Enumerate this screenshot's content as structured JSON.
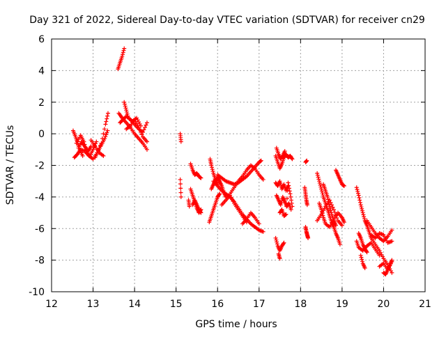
{
  "chart_data": {
    "type": "scatter",
    "title": "Day 321 of 2022, Sidereal Day-to-day VTEC variation (SDTVAR) for receiver cn29",
    "xlabel": "GPS time / hours",
    "ylabel": "SDTVAR / TECUs",
    "xlim": [
      12,
      21
    ],
    "ylim": [
      -10,
      6
    ],
    "xticks": [
      12,
      13,
      14,
      15,
      16,
      17,
      18,
      19,
      20,
      21
    ],
    "yticks": [
      -10,
      -8,
      -6,
      -4,
      -2,
      0,
      2,
      4,
      6
    ],
    "grid": true,
    "marker": "+",
    "series": [
      {
        "name": "SDTVAR",
        "color": "#ff0000",
        "segments": [
          {
            "x": [
              12.52,
              12.58,
              12.63,
              12.68,
              12.75
            ],
            "y": [
              0.2,
              -0.2,
              -0.6,
              -1.0,
              -1.4
            ]
          },
          {
            "x": [
              12.55,
              12.62,
              12.7,
              12.8,
              12.9,
              13.0,
              13.1,
              13.2,
              13.3,
              13.36
            ],
            "y": [
              -1.5,
              -1.3,
              -1.0,
              -1.1,
              -1.4,
              -1.6,
              -1.2,
              -0.6,
              0.6,
              1.3
            ]
          },
          {
            "x": [
              12.6,
              12.7,
              12.78,
              12.85,
              12.92,
              13.0,
              13.08
            ],
            "y": [
              -0.6,
              -0.1,
              -0.5,
              -1.2,
              -1.4,
              -1.0,
              -0.5
            ]
          },
          {
            "x": [
              12.65,
              12.72,
              12.8,
              12.88,
              12.95
            ],
            "y": [
              -0.9,
              -0.5,
              -0.8,
              -1.1,
              -0.8
            ]
          },
          {
            "x": [
              13.05,
              13.12,
              13.2,
              13.28,
              13.35
            ],
            "y": [
              -1.5,
              -1.1,
              -0.7,
              -0.3,
              0.2
            ]
          },
          {
            "x": [
              12.95,
              13.05,
              13.15,
              13.25
            ],
            "y": [
              -0.4,
              -0.8,
              -1.2,
              -1.4
            ]
          },
          {
            "x": [
              13.6,
              13.65,
              13.7,
              13.75
            ],
            "y": [
              4.1,
              4.5,
              4.9,
              5.4
            ]
          },
          {
            "x": [
              13.62,
              13.7,
              13.8,
              13.9,
              14.0,
              14.1,
              14.2,
              14.3
            ],
            "y": [
              1.3,
              1.0,
              0.7,
              0.4,
              0.0,
              -0.3,
              -0.6,
              -1.0
            ]
          },
          {
            "x": [
              13.65,
              13.72,
              13.8,
              13.9,
              14.0,
              14.1,
              14.2,
              14.3
            ],
            "y": [
              0.7,
              0.9,
              1.1,
              0.9,
              0.6,
              0.3,
              0.1,
              0.7
            ]
          },
          {
            "x": [
              13.75,
              13.8,
              13.85,
              13.95,
              14.05,
              14.15
            ],
            "y": [
              2.0,
              1.5,
              1.0,
              0.8,
              1.0,
              0.5
            ]
          },
          {
            "x": [
              13.8,
              13.9,
              14.0,
              14.1,
              14.2,
              14.3
            ],
            "y": [
              0.3,
              0.5,
              0.9,
              0.4,
              -0.2,
              -0.5
            ]
          },
          {
            "x": [
              15.1,
              15.12
            ],
            "y": [
              0.0,
              -0.5
            ]
          },
          {
            "x": [
              15.1,
              15.12
            ],
            "y": [
              -2.9,
              -4.0
            ]
          },
          {
            "x": [
              15.35,
              15.4,
              15.45,
              15.5,
              15.55,
              15.6
            ],
            "y": [
              -1.9,
              -2.3,
              -2.6,
              -2.5,
              -2.7,
              -2.8
            ]
          },
          {
            "x": [
              15.35,
              15.4,
              15.45,
              15.5,
              15.55,
              15.6
            ],
            "y": [
              -3.5,
              -3.9,
              -4.3,
              -4.7,
              -5.0,
              -4.8
            ]
          },
          {
            "x": [
              15.4,
              15.45,
              15.5,
              15.55,
              15.6
            ],
            "y": [
              -4.5,
              -4.2,
              -4.5,
              -4.8,
              -5.0
            ]
          },
          {
            "x": [
              15.3,
              15.32
            ],
            "y": [
              -4.2,
              -4.6
            ]
          },
          {
            "x": [
              15.82,
              15.85,
              15.9,
              15.95,
              16.0
            ],
            "y": [
              -1.6,
              -2.0,
              -2.5,
              -2.9,
              -3.2
            ]
          },
          {
            "x": [
              15.8,
              15.85,
              15.9,
              15.95,
              16.0,
              16.05
            ],
            "y": [
              -5.6,
              -5.2,
              -4.8,
              -4.4,
              -4.0,
              -3.8
            ]
          },
          {
            "x": [
              15.85,
              15.9,
              15.95,
              16.0,
              16.05,
              16.1,
              16.15,
              16.2
            ],
            "y": [
              -3.5,
              -3.2,
              -2.9,
              -2.8,
              -3.0,
              -3.3,
              -3.7,
              -4.0
            ]
          },
          {
            "x": [
              15.9,
              16.0,
              16.1,
              16.2,
              16.3,
              16.4,
              16.5,
              16.6,
              16.7,
              16.8,
              16.9,
              17.0,
              17.1
            ],
            "y": [
              -3.0,
              -3.3,
              -3.6,
              -3.8,
              -4.0,
              -4.3,
              -4.7,
              -5.1,
              -5.4,
              -5.7,
              -5.9,
              -6.1,
              -6.2
            ]
          },
          {
            "x": [
              16.0,
              16.1,
              16.2,
              16.3,
              16.4,
              16.5,
              16.6,
              16.7,
              16.8,
              16.9,
              17.0,
              17.05
            ],
            "y": [
              -2.6,
              -2.8,
              -3.0,
              -3.1,
              -3.2,
              -3.1,
              -2.9,
              -2.7,
              -2.4,
              -2.1,
              -1.8,
              -1.7
            ]
          },
          {
            "x": [
              16.3,
              16.4,
              16.5,
              16.6,
              16.7,
              16.8,
              16.9,
              17.0,
              17.1
            ],
            "y": [
              -3.8,
              -3.4,
              -3.0,
              -2.7,
              -2.3,
              -2.0,
              -2.2,
              -2.6,
              -2.9
            ]
          },
          {
            "x": [
              16.1,
              16.2,
              16.3,
              16.4,
              16.5,
              16.6,
              16.7
            ],
            "y": [
              -4.5,
              -4.2,
              -3.9,
              -4.4,
              -4.8,
              -5.2,
              -5.6
            ]
          },
          {
            "x": [
              16.6,
              16.7,
              16.8,
              16.9,
              17.0
            ],
            "y": [
              -5.7,
              -5.4,
              -5.0,
              -5.3,
              -5.7
            ]
          },
          {
            "x": [
              17.4,
              17.45,
              17.5,
              17.55,
              17.6,
              17.65
            ],
            "y": [
              -1.4,
              -1.8,
              -2.2,
              -1.9,
              -1.5,
              -1.3
            ]
          },
          {
            "x": [
              17.42,
              17.47,
              17.52,
              17.57,
              17.62
            ],
            "y": [
              -0.9,
              -1.3,
              -1.6,
              -1.4,
              -1.1
            ]
          },
          {
            "x": [
              17.4,
              17.45,
              17.5,
              17.55,
              17.6,
              17.65,
              17.7
            ],
            "y": [
              -3.1,
              -3.3,
              -3.0,
              -3.5,
              -3.2,
              -3.6,
              -3.3
            ]
          },
          {
            "x": [
              17.42,
              17.47,
              17.52,
              17.57,
              17.62,
              17.67,
              17.72,
              17.77
            ],
            "y": [
              -3.9,
              -4.2,
              -4.5,
              -4.0,
              -4.3,
              -4.6,
              -4.4,
              -4.8
            ]
          },
          {
            "x": [
              17.5,
              17.55,
              17.6,
              17.65,
              17.7,
              17.75,
              17.8
            ],
            "y": [
              -5.0,
              -4.8,
              -5.2,
              -5.1,
              -3.1,
              -3.8,
              -4.6
            ]
          },
          {
            "x": [
              17.4,
              17.45,
              17.5,
              17.55,
              17.6
            ],
            "y": [
              -6.6,
              -7.1,
              -7.4,
              -7.1,
              -6.9
            ]
          },
          {
            "x": [
              17.47,
              17.5
            ],
            "y": [
              -7.6,
              -7.9
            ]
          },
          {
            "x": [
              17.65,
              17.7,
              17.75,
              17.8
            ],
            "y": [
              -1.3,
              -1.5,
              -1.4,
              -1.6
            ]
          },
          {
            "x": [
              18.12,
              18.15
            ],
            "y": [
              -1.8,
              -1.7
            ]
          },
          {
            "x": [
              18.1,
              18.12,
              18.14,
              18.16
            ],
            "y": [
              -3.4,
              -3.8,
              -4.2,
              -4.5
            ]
          },
          {
            "x": [
              18.12,
              18.14,
              18.16,
              18.18
            ],
            "y": [
              -5.9,
              -6.2,
              -6.4,
              -6.6
            ]
          },
          {
            "x": [
              18.4,
              18.45,
              18.5,
              18.55,
              18.6,
              18.65,
              18.7,
              18.75,
              18.8,
              18.85,
              18.9,
              18.95
            ],
            "y": [
              -2.5,
              -3.0,
              -3.5,
              -4.0,
              -4.4,
              -4.8,
              -5.2,
              -5.6,
              -5.9,
              -6.3,
              -6.6,
              -7.0
            ]
          },
          {
            "x": [
              18.4,
              18.5,
              18.6,
              18.7,
              18.8,
              18.9,
              19.0
            ],
            "y": [
              -5.5,
              -5.1,
              -4.6,
              -4.2,
              -4.8,
              -5.5,
              -5.8
            ]
          },
          {
            "x": [
              18.45,
              18.5,
              18.55,
              18.6,
              18.7,
              18.8,
              18.9,
              19.0,
              19.05
            ],
            "y": [
              -4.4,
              -4.8,
              -5.3,
              -5.7,
              -5.9,
              -5.4,
              -5.0,
              -5.3,
              -5.6
            ]
          },
          {
            "x": [
              18.55,
              18.6,
              18.65,
              18.7,
              18.75,
              18.8,
              18.85
            ],
            "y": [
              -3.2,
              -3.6,
              -4.0,
              -4.6,
              -5.1,
              -5.5,
              -5.8
            ]
          },
          {
            "x": [
              18.85,
              18.9,
              18.95,
              19.0,
              19.05
            ],
            "y": [
              -2.3,
              -2.6,
              -2.9,
              -3.2,
              -3.3
            ]
          },
          {
            "x": [
              19.35,
              19.4,
              19.45,
              19.5,
              19.55,
              19.6,
              19.65,
              19.7,
              19.8,
              19.9,
              20.0,
              20.1,
              20.2
            ],
            "y": [
              -3.4,
              -3.9,
              -4.5,
              -5.0,
              -5.5,
              -5.8,
              -6.2,
              -6.6,
              -7.0,
              -7.4,
              -7.9,
              -8.3,
              -8.8
            ]
          },
          {
            "x": [
              19.35,
              19.4,
              19.5,
              19.6,
              19.7,
              19.8,
              19.9
            ],
            "y": [
              -6.8,
              -7.2,
              -7.4,
              -7.1,
              -6.9,
              -7.3,
              -7.7
            ]
          },
          {
            "x": [
              19.4,
              19.45,
              19.5,
              19.55,
              19.6
            ],
            "y": [
              -6.3,
              -6.6,
              -7.0,
              -7.3,
              -7.5
            ]
          },
          {
            "x": [
              19.45,
              19.5,
              19.55
            ],
            "y": [
              -7.7,
              -8.2,
              -8.5
            ]
          },
          {
            "x": [
              19.6,
              19.7,
              19.8,
              19.9,
              20.0,
              20.1,
              20.2
            ],
            "y": [
              -5.5,
              -5.9,
              -6.3,
              -6.6,
              -6.8,
              -6.5,
              -6.1
            ]
          },
          {
            "x": [
              19.7,
              19.8,
              19.9,
              20.0,
              20.1,
              20.2
            ],
            "y": [
              -6.4,
              -6.6,
              -6.3,
              -6.4,
              -6.9,
              -6.8
            ]
          },
          {
            "x": [
              19.9,
              20.0,
              20.1,
              20.2
            ],
            "y": [
              -8.4,
              -8.2,
              -8.6,
              -8.1
            ]
          },
          {
            "x": [
              20.0,
              20.05,
              20.1,
              20.15,
              20.2
            ],
            "y": [
              -8.8,
              -8.9,
              -8.6,
              -8.3,
              -8.0
            ]
          }
        ]
      }
    ]
  }
}
